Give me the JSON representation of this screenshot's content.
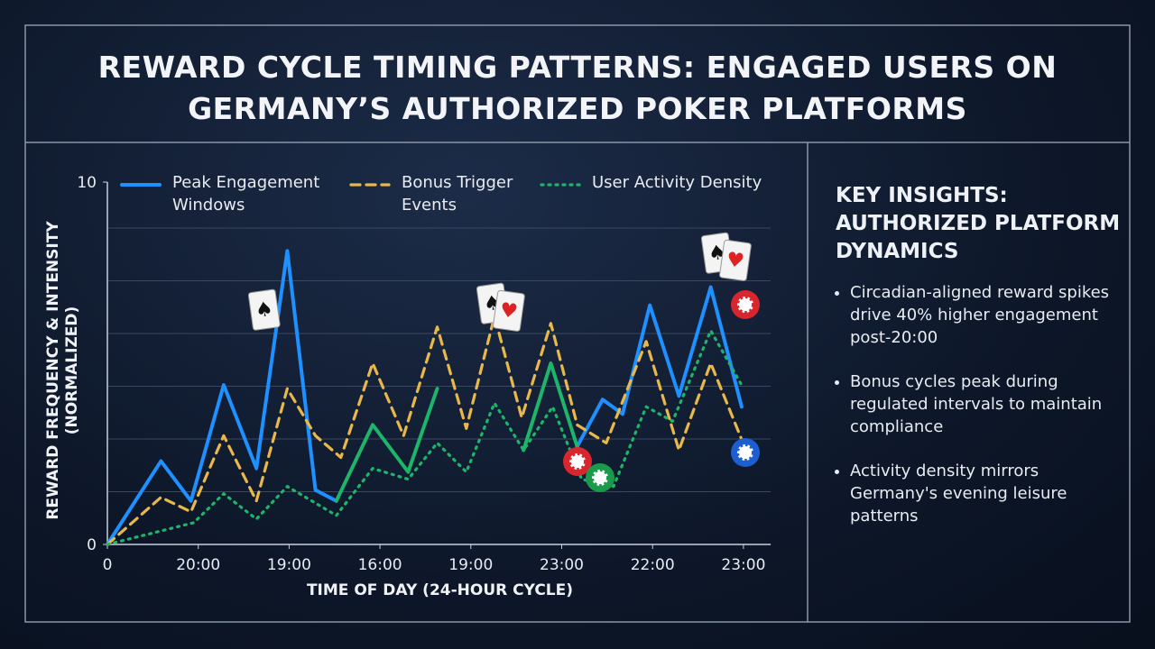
{
  "chart_data": {
    "type": "line",
    "title": "REWARD CYCLE TIMING PATTERNS: ENGAGED USERS ON GERMANY’S AUTHORIZED POKER PLATFORMS",
    "x_label": "TIME OF DAY (24-HOUR CYCLE)",
    "y_label": "REWARD FREQUENCY & INTENSITY (NORMALIZED)",
    "xlim": [
      0,
      7.3
    ],
    "xticks": [
      0,
      {
        "value": 1,
        "label": "20:00"
      },
      {
        "value": 2,
        "label": "19:00"
      },
      {
        "value": 3,
        "label": "16:00"
      },
      {
        "value": 4,
        "label": "19:00"
      },
      {
        "value": 5,
        "label": "23:00"
      },
      {
        "value": 6,
        "label": "22:00"
      },
      {
        "value": 7,
        "label": "23:00"
      }
    ],
    "ylim": [
      0,
      10
    ],
    "yticks": [
      0,
      10
    ],
    "grid": true,
    "series": [
      {
        "name": "Peak Engagement Windows",
        "color": "#1e90ff",
        "dash": "solid",
        "x": [
          0,
          0.59,
          0.92,
          1.28,
          1.64,
          1.98,
          2.29,
          2.52,
          null,
          5.17,
          5.45,
          5.67,
          5.97,
          6.29,
          6.64,
          6.98
        ],
        "values": [
          0,
          2.3,
          1.2,
          4.4,
          2.1,
          8.1,
          1.5,
          1.2,
          null,
          2.7,
          4.0,
          3.6,
          6.6,
          4.1,
          7.1,
          3.8
        ]
      },
      {
        "name": "Bonus Trigger Events",
        "color": "#e8b84a",
        "dash": "dashed",
        "x": [
          0,
          0.59,
          0.92,
          1.28,
          1.64,
          1.98,
          2.29,
          2.57,
          2.92,
          3.26,
          3.63,
          3.95,
          4.26,
          4.56,
          4.88,
          5.17,
          5.49,
          5.93,
          6.29,
          6.64,
          6.98
        ],
        "values": [
          0,
          1.3,
          0.9,
          3.0,
          1.2,
          4.3,
          3.0,
          2.4,
          5.0,
          3.0,
          6.0,
          3.2,
          6.3,
          3.5,
          6.1,
          3.3,
          2.8,
          5.6,
          2.6,
          5.0,
          2.9
        ]
      },
      {
        "name": "User Activity Density",
        "color": "#1db56a",
        "dash": "dotted",
        "x": [
          0,
          0.95,
          1.28,
          1.64,
          1.98,
          2.52,
          2.92,
          3.31,
          3.63,
          3.95,
          4.26,
          4.58,
          4.9,
          5.22,
          5.57,
          5.93,
          6.22,
          6.64,
          6.98
        ],
        "values": [
          0,
          0.6,
          1.4,
          0.7,
          1.6,
          0.8,
          2.1,
          1.8,
          2.8,
          2.0,
          3.9,
          2.6,
          3.8,
          1.8,
          1.6,
          3.8,
          3.4,
          5.9,
          4.4
        ]
      },
      {
        "color": "#1db56a",
        "dash": "solid",
        "x": [
          2.52,
          2.92,
          3.31,
          3.63,
          null,
          4.58,
          4.88,
          5.17
        ],
        "values": [
          1.2,
          3.3,
          2.0,
          4.3,
          null,
          2.6,
          5.0,
          2.7
        ]
      }
    ]
  },
  "insights": {
    "title": "KEY INSIGHTS: AUTHORIZED PLATFORM DYNAMICS",
    "items": [
      "Circadian-aligned reward spikes drive 40% higher engagement post-20:00",
      "Bonus cycles peak during regulated intervals to maintain compliance",
      "Activity density mirrors Germany's evening leisure patterns"
    ]
  }
}
